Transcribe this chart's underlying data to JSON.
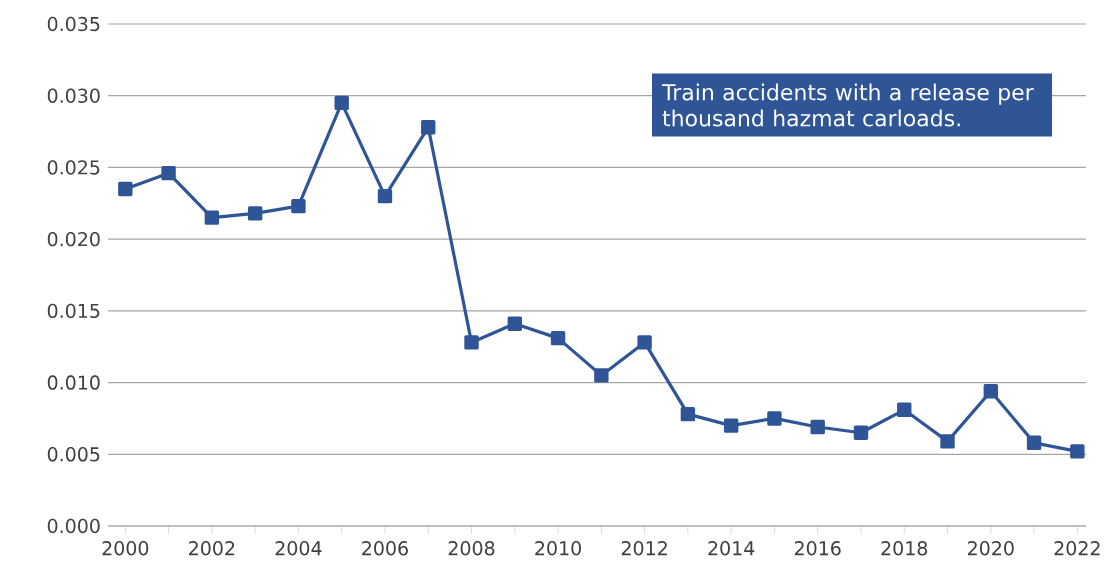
{
  "chart_data": {
    "type": "line",
    "x": [
      2000,
      2001,
      2002,
      2003,
      2004,
      2005,
      2006,
      2007,
      2008,
      2009,
      2010,
      2011,
      2012,
      2013,
      2014,
      2015,
      2016,
      2017,
      2018,
      2019,
      2020,
      2021,
      2022
    ],
    "series": [
      {
        "color": "#2f5597",
        "values": [
          0.0235,
          0.0246,
          0.0215,
          0.0218,
          0.0223,
          0.0295,
          0.023,
          0.0278,
          0.0128,
          0.0141,
          0.0131,
          0.0105,
          0.0128,
          0.0078,
          0.007,
          0.0075,
          0.0069,
          0.0065,
          0.0081,
          0.0059,
          0.0094,
          0.0058,
          0.0052
        ]
      }
    ],
    "xlim": [
      1999.6,
      2022.2
    ],
    "xticks": [
      2000,
      {
        "value": 2001,
        "label": null
      },
      2002,
      {
        "value": 2003,
        "label": null
      },
      2004,
      {
        "value": 2005,
        "label": null
      },
      2006,
      {
        "value": 2007,
        "label": null
      },
      2008,
      {
        "value": 2009,
        "label": null
      },
      2010,
      {
        "value": 2011,
        "label": null
      },
      2012,
      {
        "value": 2013,
        "label": null
      },
      2014,
      {
        "value": 2015,
        "label": null
      },
      2016,
      {
        "value": 2017,
        "label": null
      },
      2018,
      {
        "value": 2019,
        "label": null
      },
      2020,
      {
        "value": 2021,
        "label": null
      },
      2022
    ],
    "ylim": [
      0,
      0.035
    ],
    "yticks": [
      {
        "value": 0,
        "label": "0.000"
      },
      {
        "value": 0.005,
        "label": "0.005"
      },
      {
        "value": 0.01,
        "label": "0.010"
      },
      {
        "value": 0.015,
        "label": "0.015"
      },
      {
        "value": 0.02,
        "label": "0.020"
      },
      {
        "value": 0.025,
        "label": "0.025"
      },
      {
        "value": 0.03,
        "label": "0.030"
      },
      {
        "value": 0.035,
        "label": "0.035"
      }
    ],
    "grid": "y",
    "marker": "square",
    "line_style": "solid",
    "annotations": [
      "Train accidents with a release per thousand hazmat carloads."
    ]
  }
}
